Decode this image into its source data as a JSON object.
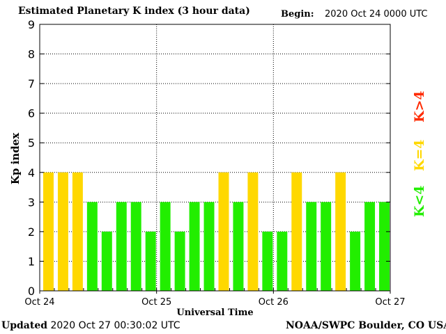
{
  "header": {
    "title": "Estimated Planetary K index (3 hour data)",
    "begin_label": "Begin:",
    "begin_value": "2020 Oct 24 0000 UTC"
  },
  "footer": {
    "updated_label": "Updated",
    "updated_value": "2020 Oct 27 00:30:02 UTC",
    "credit": "NOAA/SWPC Boulder, CO USA"
  },
  "legend": {
    "high": {
      "label": "K>4",
      "color": "#ff2a00"
    },
    "equal": {
      "label": "K=4",
      "color": "#ffd800"
    },
    "low": {
      "label": "K<4",
      "color": "#22ee00"
    }
  },
  "chart_data": {
    "type": "bar",
    "title": "Estimated Planetary K index (3 hour data)",
    "xlabel": "Universal Time",
    "ylabel": "Kp index",
    "ylim": [
      0,
      9
    ],
    "yticks": [
      "0",
      "1",
      "2",
      "3",
      "4",
      "5",
      "6",
      "7",
      "8",
      "9"
    ],
    "xticks": [
      "Oct 24",
      "Oct 25",
      "Oct 26",
      "Oct 27"
    ],
    "intervals_per_day": 8,
    "values": [
      4,
      4,
      4,
      3,
      2,
      3,
      3,
      2,
      3,
      2,
      3,
      3,
      4,
      3,
      4,
      2,
      2,
      4,
      3,
      3,
      4,
      2,
      3,
      3
    ],
    "grid": true
  }
}
